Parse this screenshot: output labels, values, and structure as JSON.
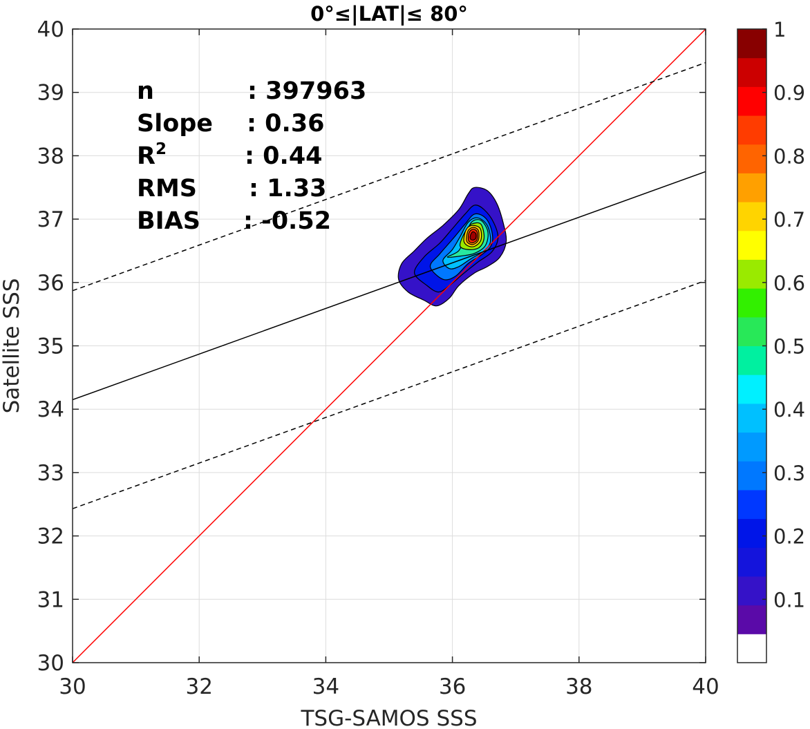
{
  "chart_data": {
    "type": "scatter",
    "title": "0°≤|LAT|≤ 80°",
    "xlabel": "TSG-SAMOS SSS",
    "ylabel": "Satellite SSS",
    "xlim": [
      30,
      40
    ],
    "ylim": [
      30,
      40
    ],
    "x_ticks": [
      "30",
      "32",
      "34",
      "36",
      "38",
      "40"
    ],
    "y_ticks": [
      "30",
      "31",
      "32",
      "33",
      "34",
      "35",
      "36",
      "37",
      "38",
      "39",
      "40"
    ],
    "grid": true,
    "stats": [
      {
        "label": "n",
        "value": ": 397963"
      },
      {
        "label": "Slope",
        "value": ": 0.36"
      },
      {
        "label": "R",
        "sup": "2",
        "value": ": 0.44"
      },
      {
        "label": "RMS",
        "value": ": 1.33"
      },
      {
        "label": "BIAS",
        "value": ": -0.52"
      }
    ],
    "reference_lines": [
      {
        "name": "one-to-one",
        "color": "#ff0000",
        "style": "solid",
        "x": [
          30,
          40
        ],
        "y": [
          30,
          40
        ]
      },
      {
        "name": "regression-fit",
        "color": "#000000",
        "style": "solid",
        "x": [
          30,
          40
        ],
        "y": [
          34.15,
          37.75
        ]
      },
      {
        "name": "upper-bound",
        "color": "#000000",
        "style": "dashed",
        "x": [
          30,
          40
        ],
        "y": [
          35.87,
          39.47
        ]
      },
      {
        "name": "lower-bound",
        "color": "#000000",
        "style": "dashed",
        "x": [
          30,
          40
        ],
        "y": [
          32.43,
          36.03
        ]
      }
    ],
    "density_contours": [
      {
        "level": 0.05,
        "color": "#3512c8",
        "points": [
          [
            35.15,
            36.05
          ],
          [
            35.2,
            36.3
          ],
          [
            35.4,
            36.5
          ],
          [
            35.6,
            36.7
          ],
          [
            35.85,
            36.9
          ],
          [
            36.1,
            37.15
          ],
          [
            36.25,
            37.4
          ],
          [
            36.35,
            37.5
          ],
          [
            36.55,
            37.45
          ],
          [
            36.7,
            37.25
          ],
          [
            36.8,
            36.95
          ],
          [
            36.85,
            36.65
          ],
          [
            36.75,
            36.4
          ],
          [
            36.55,
            36.25
          ],
          [
            36.35,
            36.15
          ],
          [
            36.1,
            35.95
          ],
          [
            35.95,
            35.75
          ],
          [
            35.75,
            35.63
          ],
          [
            35.55,
            35.72
          ],
          [
            35.3,
            35.85
          ]
        ]
      },
      {
        "level": 0.15,
        "color": "#0015e8",
        "points": [
          [
            35.4,
            36.15
          ],
          [
            35.55,
            36.4
          ],
          [
            35.8,
            36.62
          ],
          [
            36.0,
            36.85
          ],
          [
            36.2,
            37.08
          ],
          [
            36.35,
            37.22
          ],
          [
            36.5,
            37.15
          ],
          [
            36.65,
            36.95
          ],
          [
            36.72,
            36.7
          ],
          [
            36.62,
            36.48
          ],
          [
            36.4,
            36.32
          ],
          [
            36.15,
            36.12
          ],
          [
            35.95,
            35.95
          ],
          [
            35.78,
            35.85
          ],
          [
            35.6,
            35.95
          ]
        ]
      },
      {
        "level": 0.25,
        "color": "#0078ff",
        "points": [
          [
            35.65,
            36.25
          ],
          [
            35.8,
            36.45
          ],
          [
            36.0,
            36.68
          ],
          [
            36.2,
            36.92
          ],
          [
            36.35,
            37.08
          ],
          [
            36.52,
            37.02
          ],
          [
            36.62,
            36.82
          ],
          [
            36.62,
            36.6
          ],
          [
            36.48,
            36.45
          ],
          [
            36.25,
            36.3
          ],
          [
            36.05,
            36.1
          ],
          [
            35.85,
            36.05
          ]
        ]
      },
      {
        "level": 0.35,
        "color": "#00c0ff",
        "points": [
          [
            35.85,
            36.35
          ],
          [
            36.0,
            36.52
          ],
          [
            36.12,
            36.72
          ],
          [
            36.25,
            36.95
          ],
          [
            36.4,
            37.02
          ],
          [
            36.55,
            36.9
          ],
          [
            36.6,
            36.65
          ],
          [
            36.5,
            36.5
          ],
          [
            36.3,
            36.38
          ],
          [
            36.1,
            36.25
          ],
          [
            35.95,
            36.22
          ]
        ]
      },
      {
        "level": 0.45,
        "color": "#28e8a0",
        "points": [
          [
            35.92,
            36.4
          ],
          [
            36.1,
            36.5
          ],
          [
            36.2,
            36.72
          ],
          [
            36.3,
            36.95
          ],
          [
            36.45,
            36.98
          ],
          [
            36.56,
            36.8
          ],
          [
            36.52,
            36.58
          ],
          [
            36.35,
            36.46
          ],
          [
            36.15,
            36.42
          ]
        ]
      },
      {
        "level": 0.55,
        "color": "#9aea00",
        "points": [
          [
            36.12,
            36.58
          ],
          [
            36.2,
            36.8
          ],
          [
            36.3,
            36.92
          ],
          [
            36.45,
            36.92
          ],
          [
            36.5,
            36.7
          ],
          [
            36.42,
            36.55
          ],
          [
            36.25,
            36.52
          ]
        ]
      },
      {
        "level": 0.65,
        "color": "#ffd400",
        "points": [
          [
            36.18,
            36.66
          ],
          [
            36.22,
            36.84
          ],
          [
            36.32,
            36.9
          ],
          [
            36.44,
            36.85
          ],
          [
            36.45,
            36.67
          ],
          [
            36.35,
            36.57
          ],
          [
            36.24,
            36.58
          ]
        ]
      },
      {
        "level": 0.75,
        "color": "#ff8c00",
        "points": [
          [
            36.22,
            36.68
          ],
          [
            36.25,
            36.82
          ],
          [
            36.33,
            36.87
          ],
          [
            36.41,
            36.82
          ],
          [
            36.41,
            36.67
          ],
          [
            36.33,
            36.6
          ],
          [
            36.25,
            36.62
          ]
        ]
      },
      {
        "level": 0.85,
        "color": "#ff2200",
        "points": [
          [
            36.25,
            36.7
          ],
          [
            36.27,
            36.8
          ],
          [
            36.33,
            36.84
          ],
          [
            36.39,
            36.8
          ],
          [
            36.39,
            36.68
          ],
          [
            36.33,
            36.63
          ],
          [
            36.27,
            36.64
          ]
        ]
      },
      {
        "level": 0.95,
        "color": "#a00000",
        "points": [
          [
            36.28,
            36.72
          ],
          [
            36.3,
            36.78
          ],
          [
            36.33,
            36.8
          ],
          [
            36.37,
            36.77
          ],
          [
            36.37,
            36.7
          ],
          [
            36.33,
            36.67
          ],
          [
            36.29,
            36.68
          ]
        ]
      }
    ],
    "colorbar": {
      "ticks": [
        "0.1",
        "0.2",
        "0.3",
        "0.4",
        "0.5",
        "0.6",
        "0.7",
        "0.8",
        "0.9",
        "1"
      ],
      "tick_values": [
        0.1,
        0.2,
        0.3,
        0.4,
        0.5,
        0.6,
        0.7,
        0.8,
        0.9,
        1.0
      ],
      "range": [
        0,
        1
      ],
      "bins": 20,
      "colors": [
        "#ffffff",
        "#5a0aa8",
        "#3512c8",
        "#1414dc",
        "#0015e8",
        "#0038ff",
        "#0078ff",
        "#009aff",
        "#00c0ff",
        "#00f0ff",
        "#00f0a0",
        "#28e858",
        "#32f000",
        "#9aea00",
        "#ffff00",
        "#ffd400",
        "#ffa000",
        "#ff6400",
        "#ff3c00",
        "#ff0000",
        "#cc0000",
        "#880000"
      ]
    }
  }
}
